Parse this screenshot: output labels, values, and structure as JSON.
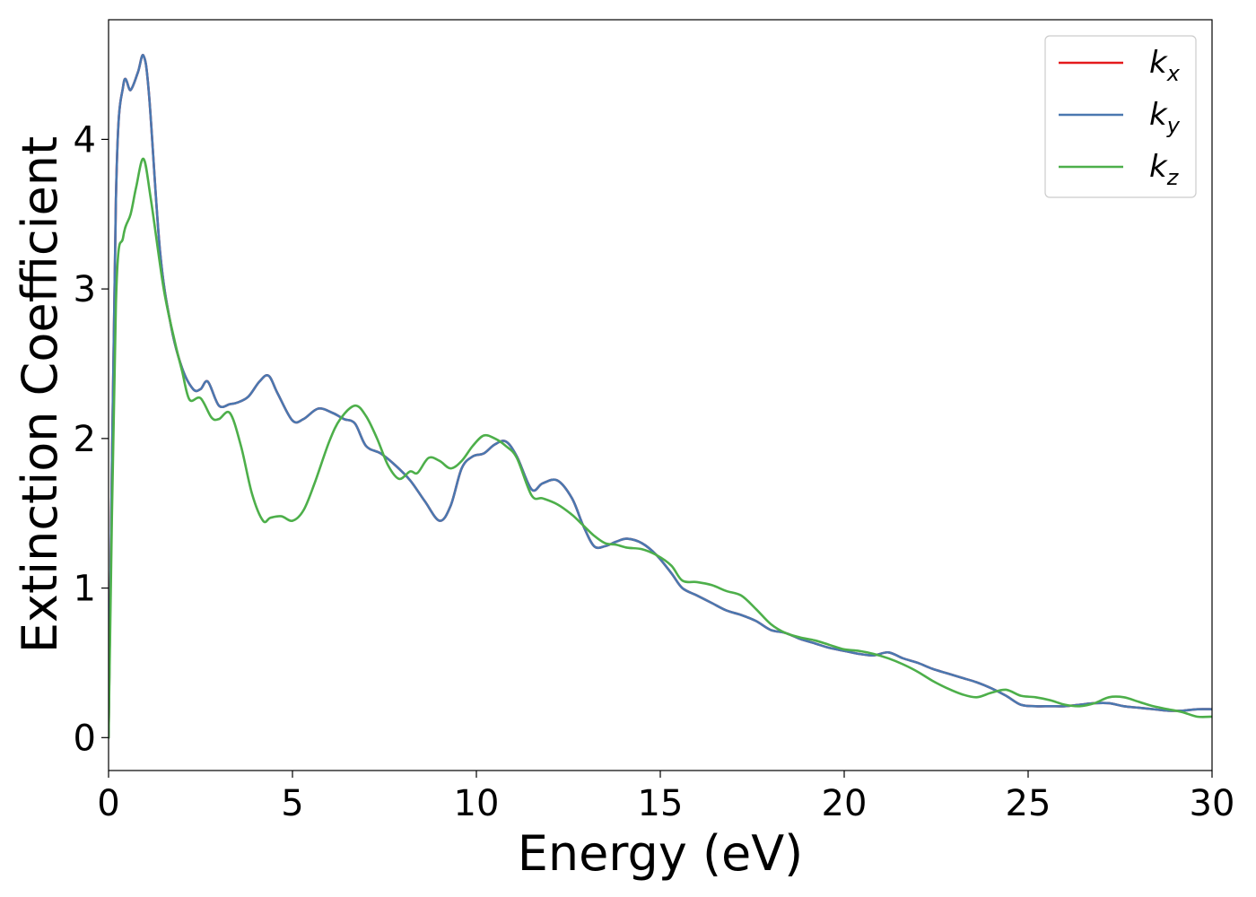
{
  "chart_data": {
    "type": "line",
    "title": "",
    "xlabel": "Energy (eV)",
    "ylabel": "Extinction Coefficient",
    "xlim": [
      0,
      30
    ],
    "ylim": [
      -0.22,
      4.8
    ],
    "xticks": [
      0,
      5,
      10,
      15,
      20,
      25,
      30
    ],
    "yticks": [
      0,
      1,
      2,
      3,
      4
    ],
    "grid": false,
    "legend_position": "top-right",
    "series": [
      {
        "name": "k_x",
        "base": "k",
        "sub": "x",
        "color": "#e41a1c",
        "x": [
          0,
          0.2,
          0.4,
          0.6,
          0.8,
          0.95,
          1.1,
          1.4,
          1.7,
          2.0,
          2.3,
          2.5,
          2.7,
          3.0,
          3.3,
          3.5,
          3.8,
          4.1,
          4.35,
          4.6,
          5.0,
          5.3,
          5.7,
          6.1,
          6.4,
          6.7,
          7.0,
          7.4,
          7.8,
          8.2,
          8.6,
          9.0,
          9.3,
          9.6,
          9.9,
          10.2,
          10.5,
          10.8,
          11.1,
          11.5,
          11.8,
          12.2,
          12.6,
          12.9,
          13.2,
          13.5,
          13.8,
          14.1,
          14.5,
          14.9,
          15.3,
          15.6,
          16.0,
          16.4,
          16.8,
          17.2,
          17.6,
          18.0,
          18.4,
          18.8,
          19.2,
          19.6,
          20.0,
          20.4,
          20.8,
          21.2,
          21.6,
          22.0,
          22.4,
          22.8,
          23.2,
          23.6,
          24.0,
          24.4,
          24.8,
          25.2,
          25.6,
          26.0,
          26.4,
          26.8,
          27.2,
          27.6,
          28.0,
          28.4,
          28.8,
          29.2,
          29.6,
          30.0
        ],
        "y": [
          0.0,
          3.6,
          4.36,
          4.33,
          4.45,
          4.56,
          4.3,
          3.25,
          2.75,
          2.47,
          2.33,
          2.33,
          2.38,
          2.22,
          2.23,
          2.24,
          2.28,
          2.38,
          2.42,
          2.3,
          2.12,
          2.13,
          2.2,
          2.17,
          2.13,
          2.1,
          1.95,
          1.9,
          1.82,
          1.72,
          1.58,
          1.45,
          1.55,
          1.8,
          1.88,
          1.9,
          1.96,
          1.98,
          1.88,
          1.66,
          1.7,
          1.72,
          1.6,
          1.42,
          1.28,
          1.28,
          1.31,
          1.33,
          1.3,
          1.22,
          1.1,
          1.0,
          0.95,
          0.9,
          0.85,
          0.82,
          0.78,
          0.72,
          0.7,
          0.66,
          0.63,
          0.6,
          0.58,
          0.56,
          0.55,
          0.57,
          0.53,
          0.5,
          0.46,
          0.43,
          0.4,
          0.37,
          0.33,
          0.28,
          0.22,
          0.21,
          0.21,
          0.21,
          0.22,
          0.23,
          0.23,
          0.21,
          0.2,
          0.19,
          0.18,
          0.18,
          0.19,
          0.19
        ]
      },
      {
        "name": "k_y",
        "base": "k",
        "sub": "y",
        "color": "#4a78b0",
        "x": [
          0,
          0.2,
          0.4,
          0.6,
          0.8,
          0.95,
          1.1,
          1.4,
          1.7,
          2.0,
          2.3,
          2.5,
          2.7,
          3.0,
          3.3,
          3.5,
          3.8,
          4.1,
          4.35,
          4.6,
          5.0,
          5.3,
          5.7,
          6.1,
          6.4,
          6.7,
          7.0,
          7.4,
          7.8,
          8.2,
          8.6,
          9.0,
          9.3,
          9.6,
          9.9,
          10.2,
          10.5,
          10.8,
          11.1,
          11.5,
          11.8,
          12.2,
          12.6,
          12.9,
          13.2,
          13.5,
          13.8,
          14.1,
          14.5,
          14.9,
          15.3,
          15.6,
          16.0,
          16.4,
          16.8,
          17.2,
          17.6,
          18.0,
          18.4,
          18.8,
          19.2,
          19.6,
          20.0,
          20.4,
          20.8,
          21.2,
          21.6,
          22.0,
          22.4,
          22.8,
          23.2,
          23.6,
          24.0,
          24.4,
          24.8,
          25.2,
          25.6,
          26.0,
          26.4,
          26.8,
          27.2,
          27.6,
          28.0,
          28.4,
          28.8,
          29.2,
          29.6,
          30.0
        ],
        "y": [
          0.0,
          3.6,
          4.36,
          4.33,
          4.45,
          4.56,
          4.3,
          3.25,
          2.75,
          2.47,
          2.33,
          2.33,
          2.38,
          2.22,
          2.23,
          2.24,
          2.28,
          2.38,
          2.42,
          2.3,
          2.12,
          2.13,
          2.2,
          2.17,
          2.13,
          2.1,
          1.95,
          1.9,
          1.82,
          1.72,
          1.58,
          1.45,
          1.55,
          1.8,
          1.88,
          1.9,
          1.96,
          1.98,
          1.88,
          1.66,
          1.7,
          1.72,
          1.6,
          1.42,
          1.28,
          1.28,
          1.31,
          1.33,
          1.3,
          1.22,
          1.1,
          1.0,
          0.95,
          0.9,
          0.85,
          0.82,
          0.78,
          0.72,
          0.7,
          0.66,
          0.63,
          0.6,
          0.58,
          0.56,
          0.55,
          0.57,
          0.53,
          0.5,
          0.46,
          0.43,
          0.4,
          0.37,
          0.33,
          0.28,
          0.22,
          0.21,
          0.21,
          0.21,
          0.22,
          0.23,
          0.23,
          0.21,
          0.2,
          0.19,
          0.18,
          0.18,
          0.19,
          0.19
        ]
      },
      {
        "name": "k_z",
        "base": "k",
        "sub": "z",
        "color": "#4daf4a",
        "x": [
          0,
          0.2,
          0.4,
          0.6,
          0.75,
          0.95,
          1.15,
          1.5,
          1.8,
          2.0,
          2.2,
          2.5,
          2.8,
          3.0,
          3.3,
          3.6,
          3.9,
          4.2,
          4.4,
          4.7,
          5.0,
          5.3,
          5.6,
          6.0,
          6.3,
          6.7,
          7.0,
          7.3,
          7.6,
          7.9,
          8.2,
          8.4,
          8.7,
          9.0,
          9.3,
          9.6,
          9.9,
          10.2,
          10.5,
          10.8,
          11.1,
          11.5,
          11.8,
          12.2,
          12.6,
          12.9,
          13.2,
          13.5,
          13.8,
          14.1,
          14.5,
          14.9,
          15.3,
          15.6,
          16.0,
          16.4,
          16.8,
          17.2,
          17.6,
          18.0,
          18.4,
          18.8,
          19.2,
          19.6,
          20.0,
          20.4,
          20.8,
          21.2,
          21.6,
          22.0,
          22.4,
          22.8,
          23.2,
          23.6,
          24.0,
          24.4,
          24.8,
          25.2,
          25.6,
          26.0,
          26.4,
          26.8,
          27.2,
          27.6,
          28.0,
          28.4,
          28.8,
          29.2,
          29.6,
          30.0
        ],
        "y": [
          0.0,
          2.9,
          3.35,
          3.5,
          3.68,
          3.87,
          3.6,
          3.0,
          2.65,
          2.45,
          2.26,
          2.27,
          2.14,
          2.13,
          2.17,
          1.95,
          1.63,
          1.45,
          1.47,
          1.48,
          1.45,
          1.52,
          1.7,
          1.98,
          2.13,
          2.22,
          2.15,
          2.0,
          1.82,
          1.73,
          1.78,
          1.77,
          1.87,
          1.85,
          1.8,
          1.85,
          1.95,
          2.02,
          2.0,
          1.95,
          1.87,
          1.62,
          1.6,
          1.56,
          1.49,
          1.42,
          1.35,
          1.3,
          1.29,
          1.27,
          1.26,
          1.22,
          1.15,
          1.05,
          1.04,
          1.02,
          0.98,
          0.95,
          0.86,
          0.76,
          0.7,
          0.67,
          0.65,
          0.62,
          0.59,
          0.58,
          0.56,
          0.53,
          0.49,
          0.44,
          0.38,
          0.33,
          0.29,
          0.27,
          0.3,
          0.32,
          0.28,
          0.27,
          0.25,
          0.22,
          0.21,
          0.23,
          0.27,
          0.27,
          0.24,
          0.21,
          0.19,
          0.17,
          0.14,
          0.14
        ]
      }
    ]
  }
}
